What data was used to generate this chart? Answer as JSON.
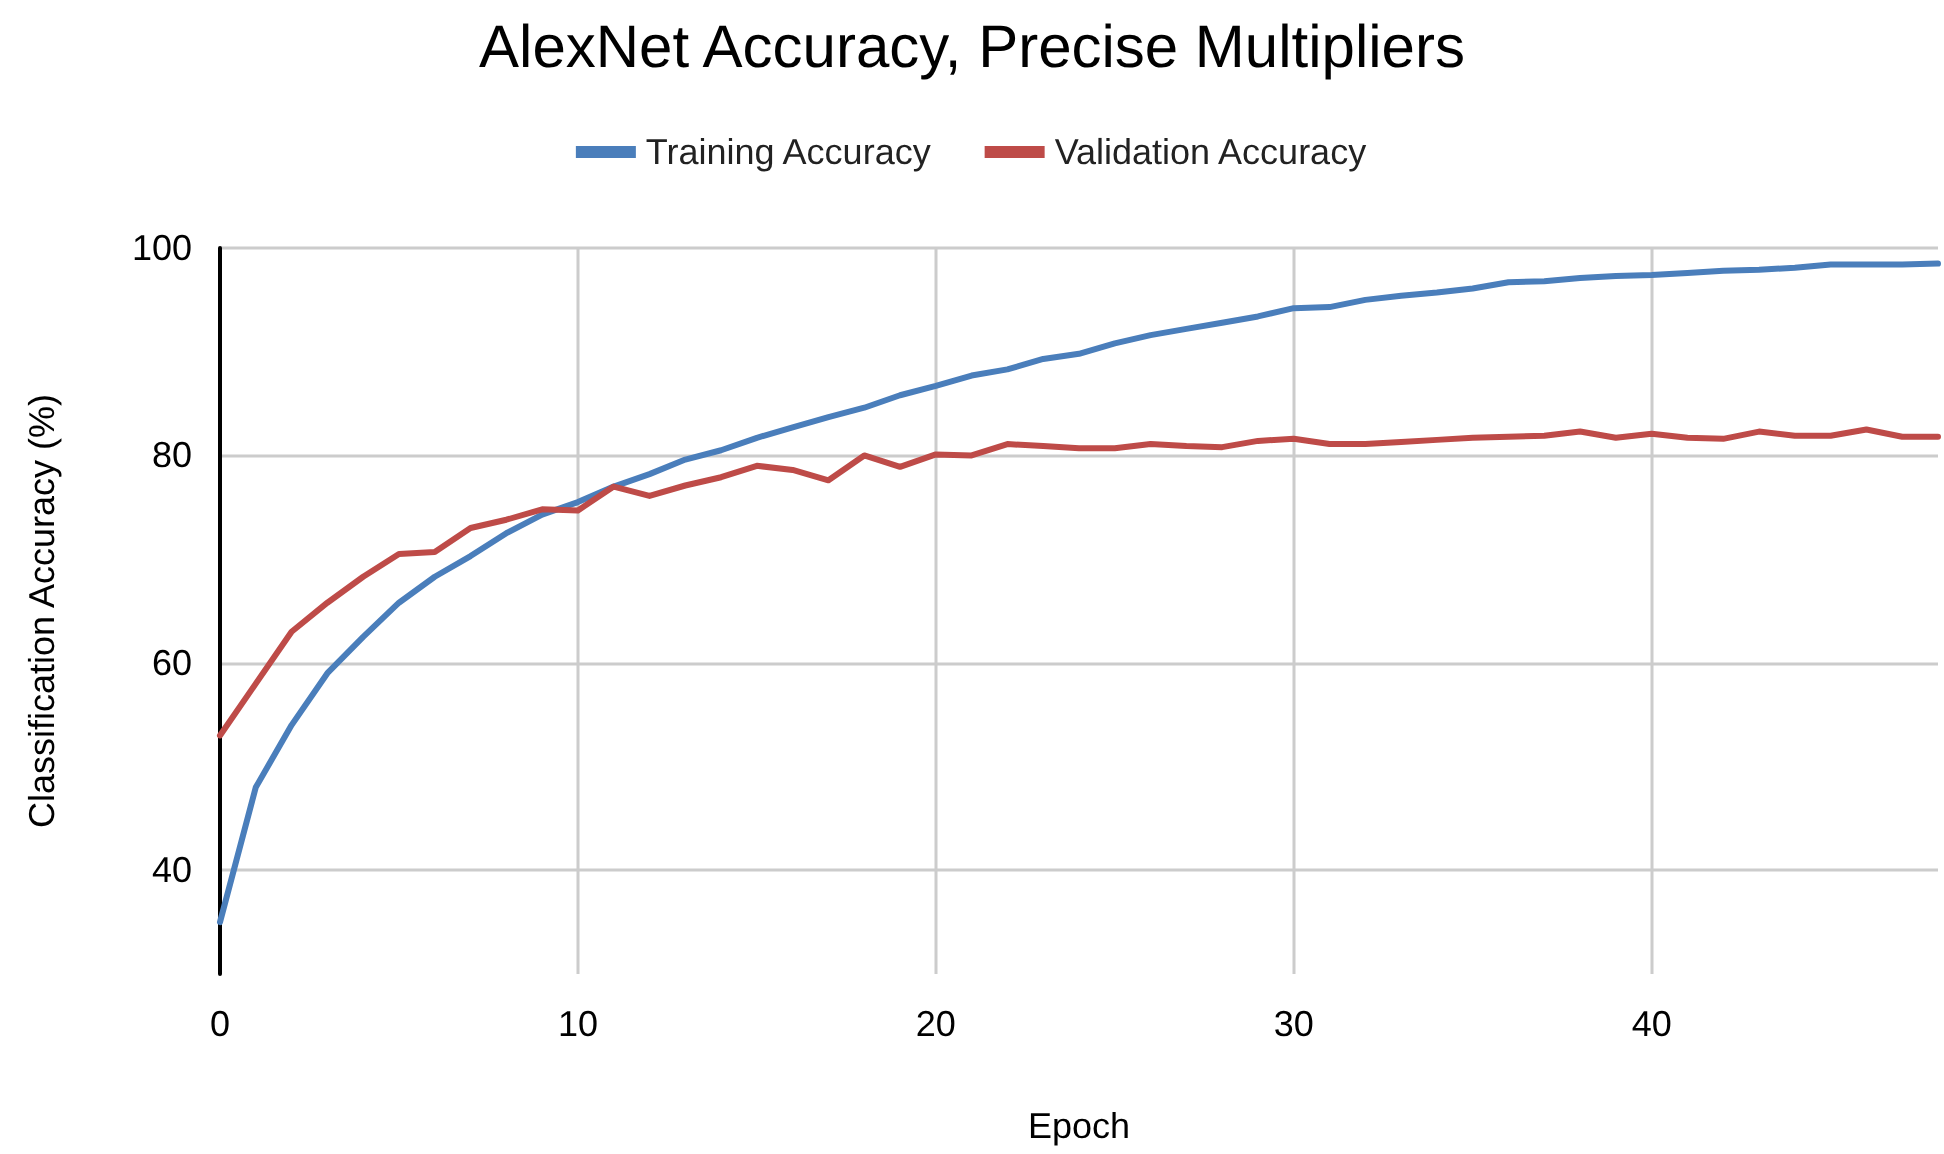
{
  "chart_data": {
    "type": "line",
    "title": "AlexNet Accuracy, Precise Multipliers",
    "xlabel": "Epoch",
    "ylabel": "Classification Accuracy (%)",
    "x": [
      0,
      1,
      2,
      3,
      4,
      5,
      6,
      7,
      8,
      9,
      10,
      11,
      12,
      13,
      14,
      15,
      16,
      17,
      18,
      19,
      20,
      21,
      22,
      23,
      24,
      25,
      26,
      27,
      28,
      29,
      30,
      31,
      32,
      33,
      34,
      35,
      36,
      37,
      38,
      39,
      40,
      41,
      42,
      43,
      44,
      45,
      46,
      47,
      48
    ],
    "series": [
      {
        "name": "Training Accuracy",
        "color": "#4a7ebb",
        "values": [
          35,
          48,
          54,
          59,
          62.5,
          65.8,
          68.3,
          70.3,
          72.5,
          74.3,
          75.5,
          77,
          78.2,
          79.6,
          80.5,
          81.7,
          82.7,
          83.7,
          84.6,
          85.8,
          86.7,
          87.7,
          88.3,
          89.3,
          89.8,
          90.8,
          91.6,
          92.2,
          92.8,
          93.4,
          94.2,
          94.3,
          95,
          95.4,
          95.7,
          96.1,
          96.7,
          96.8,
          97.1,
          97.3,
          97.4,
          97.6,
          97.8,
          97.9,
          98.1,
          98.4,
          98.4,
          98.4,
          98.5
        ]
      },
      {
        "name": "Validation Accuracy",
        "color": "#be4b48",
        "values": [
          53,
          58,
          63,
          65.8,
          68.3,
          70.5,
          70.7,
          73,
          73.8,
          74.8,
          74.7,
          77,
          76.1,
          77.1,
          77.9,
          79,
          78.6,
          77.6,
          80,
          78.9,
          80.1,
          80,
          81.1,
          80.9,
          80.7,
          80.7,
          81.1,
          80.9,
          80.8,
          81.4,
          81.6,
          81.1,
          81.1,
          81.3,
          81.5,
          81.7,
          81.8,
          81.9,
          82.3,
          81.7,
          82.1,
          81.7,
          81.6,
          82.3,
          81.9,
          81.9,
          82.5,
          81.8,
          81.8
        ]
      }
    ],
    "xlim": [
      0,
      48
    ],
    "xticks": [
      0,
      10,
      20,
      30,
      40
    ],
    "ylim": [
      30,
      100
    ],
    "yticks": [
      40,
      60,
      80,
      100
    ],
    "grid": true,
    "legend": "top",
    "marker": "none",
    "line_style": "solid"
  }
}
